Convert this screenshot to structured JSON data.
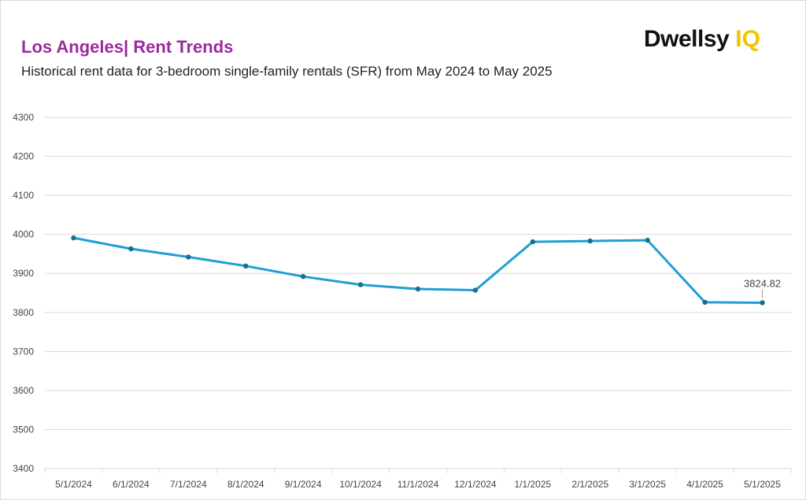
{
  "header": {
    "title": "Los Angeles| Rent Trends",
    "subtitle": "Historical rent data for 3-bedroom single-family rentals (SFR) from May 2024 to May 2025"
  },
  "logo": {
    "brand": "Dwellsy",
    "suffix": "IQ",
    "brand_color": "#111111",
    "suffix_color": "#f2c300"
  },
  "chart_data": {
    "type": "line",
    "categories": [
      "5/1/2024",
      "6/1/2024",
      "7/1/2024",
      "8/1/2024",
      "9/1/2024",
      "10/1/2024",
      "11/1/2024",
      "12/1/2024",
      "1/1/2025",
      "2/1/2025",
      "3/1/2025",
      "4/1/2025",
      "5/1/2025"
    ],
    "series": [
      {
        "values": [
          3991,
          3963,
          3942,
          3919,
          3892,
          3871,
          3860,
          3857,
          3981,
          3983,
          3985,
          3826,
          3824.82
        ],
        "color": "#1f9fd6",
        "marker_color": "#1a6f8f"
      }
    ],
    "data_label": {
      "index": 12,
      "text": "3824.82"
    },
    "yticks": [
      "3400",
      "3500",
      "3600",
      "3700",
      "3800",
      "3900",
      "4000",
      "4100",
      "4200",
      "4300"
    ],
    "ylim": [
      3400,
      4300
    ],
    "grid": true,
    "legend": "none"
  }
}
